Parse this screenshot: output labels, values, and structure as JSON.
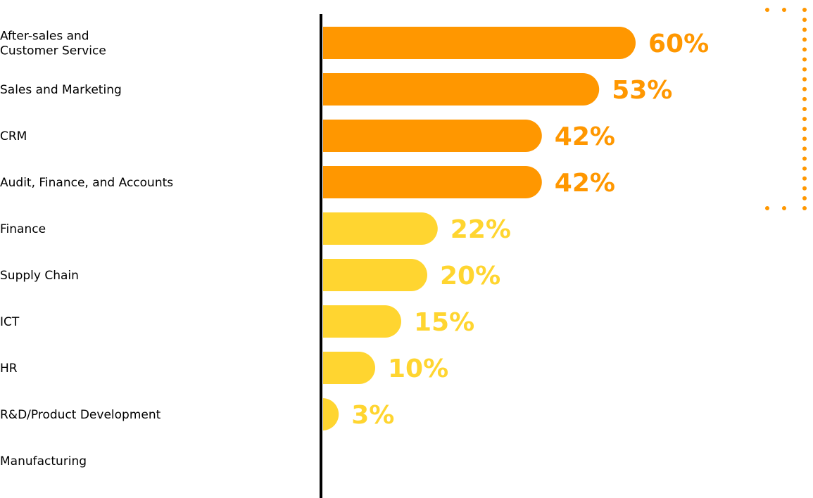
{
  "chart_data": {
    "type": "bar",
    "orientation": "horizontal",
    "categories": [
      [
        "After-sales and",
        "Customer Service"
      ],
      [
        "Sales and Marketing"
      ],
      [
        "CRM"
      ],
      [
        "Audit, Finance, and Accounts"
      ],
      [
        "Finance"
      ],
      [
        "Supply Chain"
      ],
      [
        "ICT"
      ],
      [
        "HR"
      ],
      [
        "R&D/Product Development"
      ],
      [
        "Manufacturing"
      ]
    ],
    "values": [
      60,
      53,
      42,
      42,
      22,
      20,
      15,
      10,
      3,
      null
    ],
    "value_labels": [
      "60%",
      "53%",
      "42%",
      "42%",
      "22%",
      "20%",
      "15%",
      "10%",
      "3%",
      ""
    ],
    "highlight_count": 4,
    "colors": {
      "highlight": "#FF9700",
      "normal": "#FFD530",
      "axis": "#000000",
      "dots": "#FF9700"
    },
    "xlim": [
      0,
      60
    ],
    "grid": false,
    "legend": "none"
  }
}
